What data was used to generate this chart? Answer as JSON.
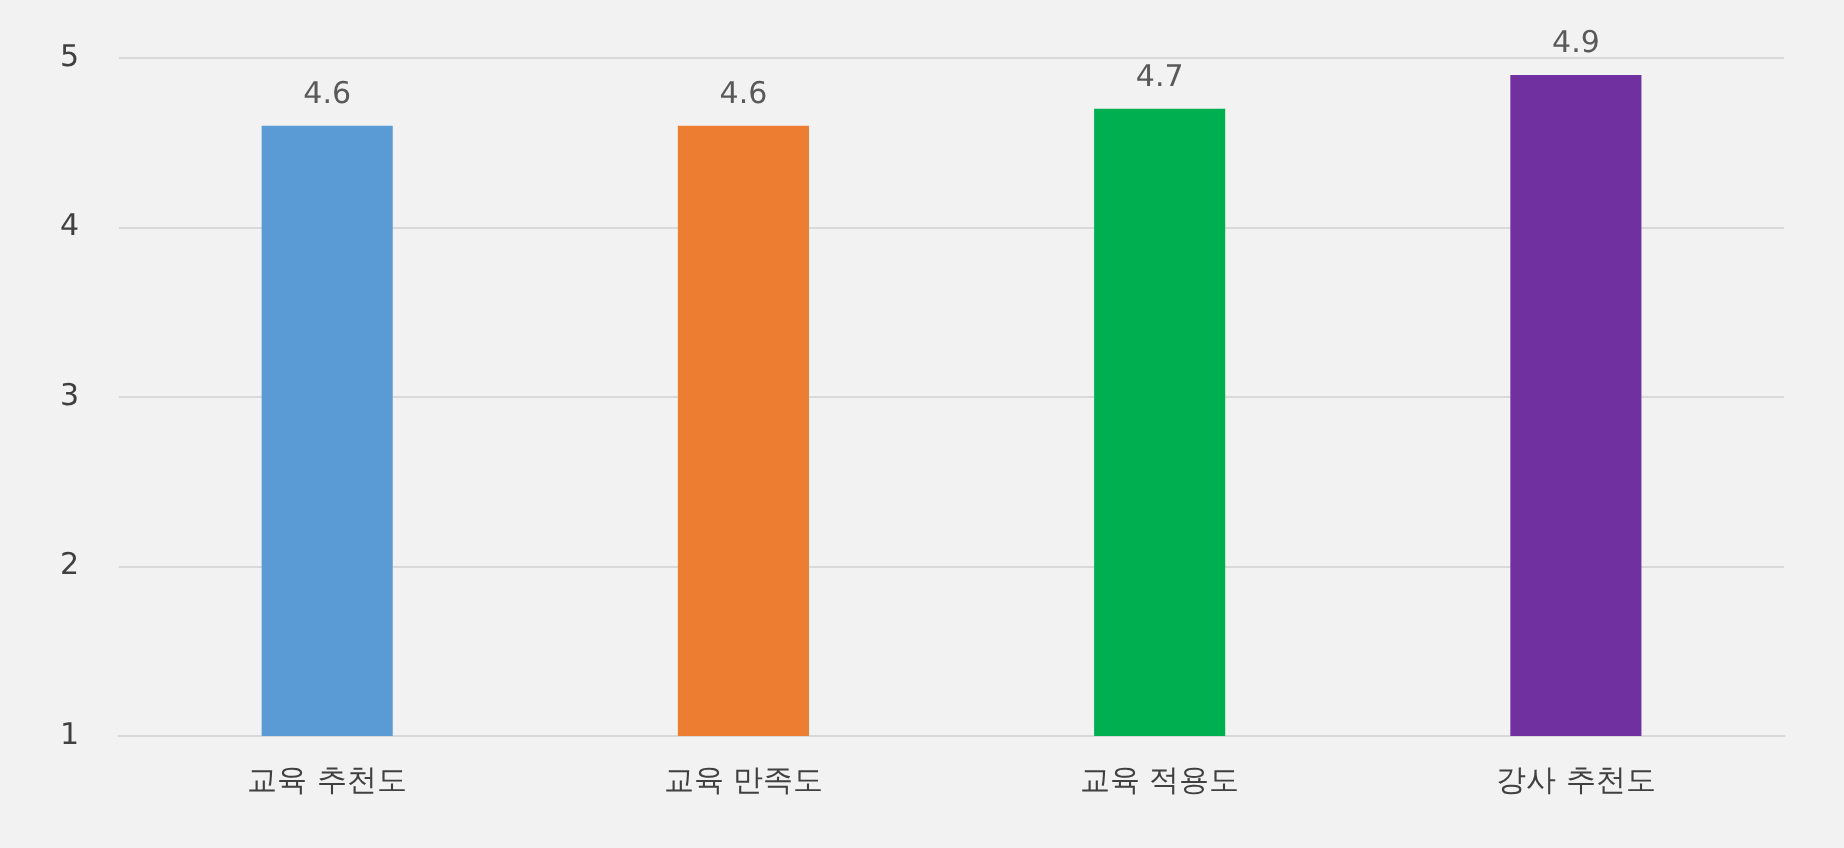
{
  "chart_data": {
    "type": "bar",
    "categories": [
      "교육 추천도",
      "교육 만족도",
      "교육 적용도",
      "강사 추천도"
    ],
    "values": [
      4.6,
      4.6,
      4.7,
      4.9
    ],
    "colors": [
      "#5b9bd5",
      "#ed7d31",
      "#00b050",
      "#7030a0"
    ],
    "ylim": [
      1,
      5
    ],
    "yticks": [
      1,
      2,
      3,
      4,
      5
    ],
    "grid": "y",
    "data_labels": true,
    "legend": false
  }
}
